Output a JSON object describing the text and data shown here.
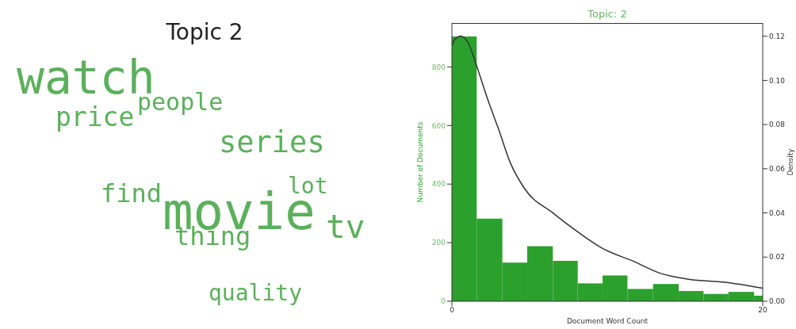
{
  "chart_data": [
    {
      "type": "other",
      "title": "Topic 2",
      "color": "#5cb05c",
      "annotations": [
        "watch",
        "people",
        "price",
        "series",
        "lot",
        "find",
        "movie",
        "tv",
        "thing",
        "quality"
      ]
    },
    {
      "type": "histogram",
      "title": "Topic: 2",
      "xlabel": "Document Word Count",
      "ylabel": "Number of Documents",
      "y2label": "Density",
      "bins": [
        0,
        1.6,
        3.25,
        4.85,
        6.5,
        8.1,
        9.7,
        11.3,
        12.95,
        14.6,
        16.2,
        17.8,
        19.45,
        20
      ],
      "values": [
        904,
        282,
        132,
        188,
        138,
        61,
        88,
        42,
        59,
        35,
        25,
        32,
        19
      ],
      "color": "#2ca02c",
      "series": [
        {
          "type": "line",
          "axis": "y2",
          "color": "#333333",
          "x": [
            0,
            0.17,
            0.59,
            1.09,
            1.59,
            2.34,
            3.01,
            3.77,
            4.69,
            6.53,
            8.2,
            9.7,
            11.72,
            13.39,
            15.23,
            17.57,
            20
          ],
          "values": [
            0.1156,
            0.1184,
            0.1201,
            0.1164,
            0.1066,
            0.0907,
            0.0778,
            0.0625,
            0.0509,
            0.0398,
            0.0309,
            0.0239,
            0.018,
            0.0127,
            0.01,
            0.0086,
            0.0059
          ]
        }
      ],
      "xlim": [
        0,
        20
      ],
      "xticks": [
        0,
        20
      ],
      "ylim": [
        0,
        950
      ],
      "yticks": [
        0,
        200,
        400,
        600,
        800
      ],
      "y2lim": [
        0,
        0.126
      ],
      "y2ticks": [
        {
          "value": 0,
          "label": "0.00"
        },
        {
          "value": 0.02,
          "label": "0.02"
        },
        {
          "value": 0.04,
          "label": "0.04"
        },
        {
          "value": 0.06,
          "label": "0.06"
        },
        {
          "value": 0.08,
          "label": "0.08"
        },
        {
          "value": 0.1,
          "label": "0.10"
        },
        {
          "value": 0.12,
          "label": "0.12"
        }
      ],
      "grid": false
    }
  ]
}
